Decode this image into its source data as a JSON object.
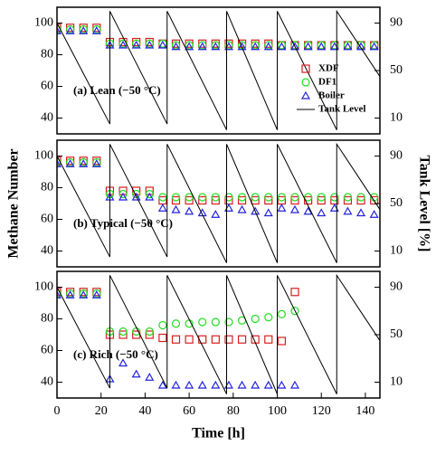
{
  "chart_data": [
    {
      "type": "scatter",
      "annotation": "(a) Lean (−50 °C)",
      "xlim": [
        0,
        146.6
      ],
      "ylim": [
        30,
        110
      ],
      "yticks": [
        40,
        60,
        80,
        100
      ],
      "y2lim": [
        -3.33,
        103.33
      ],
      "y2ticks": [
        10,
        50,
        90
      ],
      "legend": "right",
      "x": [
        0,
        6,
        12,
        18,
        24,
        30,
        36,
        42,
        48,
        54,
        60,
        66,
        72,
        78,
        84,
        90,
        96,
        102,
        108,
        114,
        120,
        126,
        132,
        138,
        144
      ],
      "series": [
        {
          "name": "XDF",
          "color": "#d62020",
          "marker": "square",
          "values": [
            97,
            97,
            97,
            97,
            88,
            88,
            88,
            88,
            87,
            87,
            87,
            87,
            87,
            87,
            87,
            87,
            87,
            86,
            86,
            86,
            86,
            86,
            86,
            86,
            86
          ]
        },
        {
          "name": "DF1",
          "color": "#22dd22",
          "marker": "circle",
          "values": [
            96,
            96,
            96,
            96,
            87,
            87,
            87,
            87,
            87,
            86,
            86,
            86,
            86,
            86,
            86,
            86,
            86,
            86,
            86,
            86,
            86,
            86,
            86,
            86,
            86
          ]
        },
        {
          "name": "Boiler",
          "color": "#2222dd",
          "marker": "triangle",
          "values": [
            95,
            95,
            95,
            95,
            86,
            86,
            86,
            86,
            86,
            85,
            85,
            85,
            85,
            85,
            85,
            85,
            85,
            85,
            85,
            85,
            85,
            85,
            85,
            85,
            85
          ]
        },
        {
          "name": "Tank Level",
          "color": "#000000",
          "marker": "line",
          "axis": "y2",
          "x": [
            0,
            24,
            24,
            50,
            50,
            77,
            77,
            100,
            100,
            127,
            127,
            146.6
          ],
          "values": [
            90,
            5,
            100,
            5,
            100,
            0,
            100,
            0,
            100,
            0,
            100,
            45
          ]
        }
      ]
    },
    {
      "type": "scatter",
      "annotation": "(b) Typical (−50 °C)",
      "y_label": "Methane Number",
      "y2_label": "Tank Level [%]",
      "xlim": [
        0,
        146.6
      ],
      "ylim": [
        30,
        110
      ],
      "yticks": [
        40,
        60,
        80,
        100
      ],
      "y2lim": [
        -3.33,
        103.33
      ],
      "y2ticks": [
        10,
        50,
        90
      ],
      "x": [
        0,
        6,
        12,
        18,
        24,
        30,
        36,
        42,
        48,
        54,
        60,
        66,
        72,
        78,
        84,
        90,
        96,
        102,
        108,
        114,
        120,
        126,
        132,
        138,
        144
      ],
      "series": [
        {
          "name": "XDF",
          "color": "#d62020",
          "marker": "square",
          "values": [
            97,
            97,
            97,
            97,
            78,
            78,
            78,
            78,
            72,
            72,
            72,
            72,
            72,
            72,
            72,
            72,
            72,
            72,
            72,
            72,
            72,
            72,
            72,
            72,
            72
          ]
        },
        {
          "name": "DF1",
          "color": "#22dd22",
          "marker": "circle",
          "values": [
            96,
            96,
            96,
            96,
            76,
            76,
            76,
            76,
            74,
            74,
            74,
            74,
            74,
            74,
            74,
            74,
            74,
            74,
            74,
            74,
            74,
            74,
            74,
            74,
            74
          ]
        },
        {
          "name": "Boiler",
          "color": "#2222dd",
          "marker": "triangle",
          "values": [
            95,
            95,
            95,
            95,
            74,
            74,
            74,
            74,
            67,
            66,
            65,
            64,
            63,
            67,
            66,
            65,
            64,
            67,
            66,
            65,
            64,
            67,
            65,
            64,
            63
          ]
        },
        {
          "name": "Tank Level",
          "color": "#000000",
          "marker": "line",
          "axis": "y2",
          "x": [
            0,
            24,
            24,
            50,
            50,
            77,
            77,
            100,
            100,
            127,
            127,
            146.6
          ],
          "values": [
            90,
            5,
            100,
            5,
            100,
            0,
            100,
            0,
            100,
            0,
            100,
            45
          ]
        }
      ]
    },
    {
      "type": "scatter",
      "annotation": "(c) Rich (−50 °C)",
      "x_label": "Time [h]",
      "xlim": [
        0,
        146.6
      ],
      "xticks": [
        0,
        20,
        40,
        60,
        80,
        100,
        120,
        140
      ],
      "ylim": [
        30,
        110
      ],
      "yticks": [
        40,
        60,
        80,
        100
      ],
      "y2lim": [
        -3.33,
        103.33
      ],
      "y2ticks": [
        10,
        50,
        90
      ],
      "x": [
        0,
        6,
        12,
        18,
        24,
        30,
        36,
        42,
        48,
        54,
        60,
        66,
        72,
        78,
        84,
        90,
        96,
        102,
        108,
        114,
        120,
        126,
        132,
        138,
        144
      ],
      "series": [
        {
          "name": "XDF",
          "color": "#d62020",
          "marker": "square",
          "values": [
            97,
            97,
            97,
            97,
            70,
            70,
            70,
            70,
            68,
            67,
            67,
            67,
            67,
            67,
            67,
            67,
            67,
            66,
            97,
            null,
            null,
            null,
            null,
            null,
            null
          ]
        },
        {
          "name": "DF1",
          "color": "#22dd22",
          "marker": "circle",
          "values": [
            96,
            96,
            96,
            96,
            72,
            72,
            72,
            72,
            76,
            77,
            77,
            78,
            78,
            78,
            79,
            80,
            81,
            83,
            85,
            null,
            null,
            null,
            null,
            null,
            null
          ]
        },
        {
          "name": "Boiler",
          "color": "#2222dd",
          "marker": "triangle",
          "values": [
            95,
            95,
            95,
            95,
            42,
            52,
            45,
            43,
            38,
            38,
            38,
            38,
            38,
            38,
            38,
            38,
            38,
            38,
            38,
            null,
            null,
            null,
            null,
            null,
            null
          ]
        },
        {
          "name": "Tank Level",
          "color": "#000000",
          "marker": "line",
          "axis": "y2",
          "x": [
            0,
            24,
            24,
            50,
            50,
            77,
            77,
            100,
            100,
            127,
            127,
            146.6
          ],
          "values": [
            90,
            5,
            100,
            5,
            100,
            0,
            100,
            0,
            100,
            0,
            100,
            45
          ]
        }
      ]
    }
  ]
}
